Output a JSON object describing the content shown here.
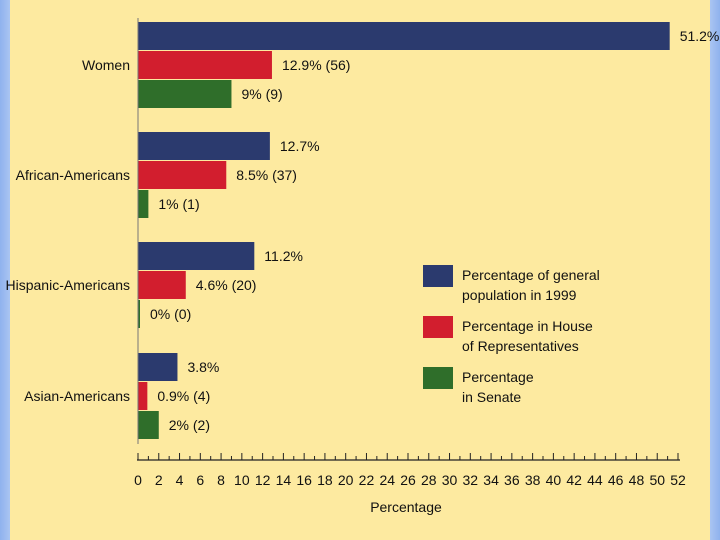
{
  "chart_data": {
    "type": "bar",
    "orientation": "horizontal",
    "categories": [
      "Women",
      "African-Americans",
      "Hispanic-Americans",
      "Asian-Americans"
    ],
    "series": [
      {
        "name": "Percentage of general population in 1999",
        "legend_lines": [
          "Percentage of general",
          "population in 1999"
        ],
        "color": "#2b3a6e",
        "values": [
          51.2,
          12.7,
          11.2,
          3.8
        ],
        "labels": [
          "51.2%",
          "12.7%",
          "11.2%",
          "3.8%"
        ]
      },
      {
        "name": "Percentage in House of Representatives",
        "legend_lines": [
          "Percentage in House",
          "of Representatives"
        ],
        "color": "#d21e2e",
        "values": [
          12.9,
          8.5,
          4.6,
          0.9
        ],
        "labels": [
          "12.9% (56)",
          "8.5% (37)",
          "4.6% (20)",
          "0.9% (4)"
        ]
      },
      {
        "name": "Percentage in Senate",
        "legend_lines": [
          "Percentage",
          "in Senate"
        ],
        "color": "#2f6e2a",
        "values": [
          9,
          1,
          0,
          2
        ],
        "labels": [
          "9% (9)",
          "1% (1)",
          "0% (0)",
          "2% (2)"
        ]
      }
    ],
    "xlabel": "Percentage",
    "xlim": [
      0,
      52
    ],
    "xticks": [
      0,
      2,
      4,
      6,
      8,
      10,
      12,
      14,
      16,
      18,
      20,
      22,
      24,
      26,
      28,
      30,
      32,
      34,
      36,
      38,
      40,
      42,
      44,
      46,
      48,
      50,
      52
    ],
    "grid": false,
    "legend_position": "right"
  }
}
